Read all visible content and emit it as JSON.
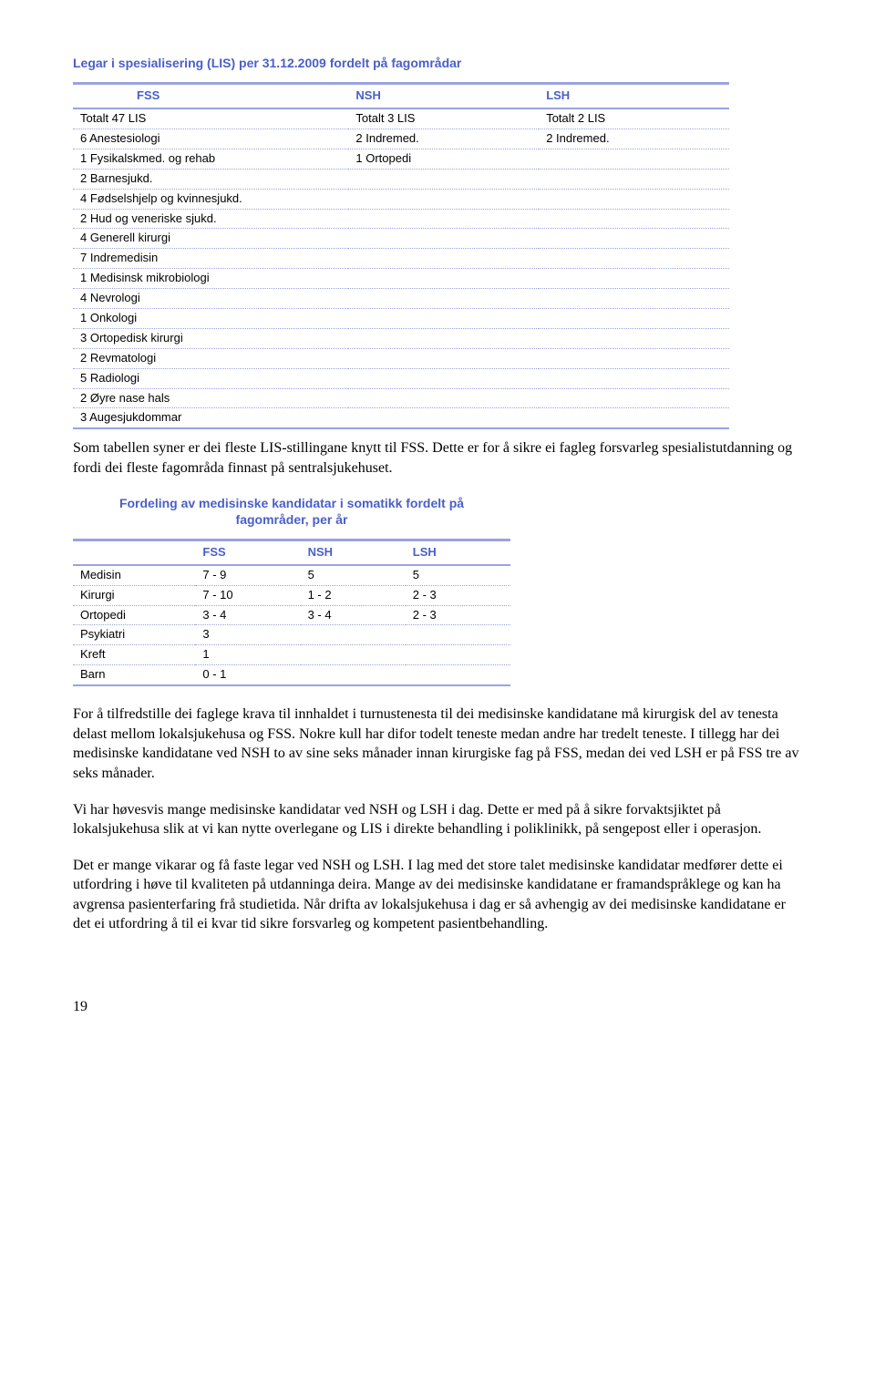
{
  "title1": "Legar i spesialisering (LIS) per 31.12.2009 fordelt på fagområdar",
  "t1": {
    "headers": [
      "FSS",
      "NSH",
      "LSH"
    ],
    "rows": [
      [
        "Totalt 47 LIS",
        "Totalt 3 LIS",
        "Totalt 2 LIS"
      ],
      [
        "6 Anestesiologi",
        "2 Indremed.",
        "2 Indremed."
      ],
      [
        "1 Fysikalskmed. og rehab",
        "1 Ortopedi",
        ""
      ],
      [
        "2 Barnesjukd.",
        "",
        ""
      ],
      [
        "4 Fødselshjelp og kvinnesjukd.",
        "",
        ""
      ],
      [
        "2 Hud og veneriske sjukd.",
        "",
        ""
      ],
      [
        "4 Generell kirurgi",
        "",
        ""
      ],
      [
        "7 Indremedisin",
        "",
        ""
      ],
      [
        "1 Medisinsk mikrobiologi",
        "",
        ""
      ],
      [
        "4 Nevrologi",
        "",
        ""
      ],
      [
        "1 Onkologi",
        "",
        ""
      ],
      [
        "3 Ortopedisk kirurgi",
        "",
        ""
      ],
      [
        "2 Revmatologi",
        "",
        ""
      ],
      [
        "5 Radiologi",
        "",
        ""
      ],
      [
        "2 Øyre nase hals",
        "",
        ""
      ],
      [
        "3 Augesjukdommar",
        "",
        ""
      ]
    ]
  },
  "para1": "Som tabellen syner er dei fleste LIS-stillingane knytt til FSS. Dette er for å sikre ei fagleg forsvarleg spesialistutdanning og fordi dei fleste fagområda finnast på sentralsjukehuset.",
  "title2a": "Fordeling av medisinske kandidatar i somatikk fordelt på",
  "title2b": "fagområder, per år",
  "t2": {
    "headers": [
      "",
      "FSS",
      "NSH",
      "LSH"
    ],
    "rows": [
      [
        "Medisin",
        "7 - 9",
        "5",
        "5"
      ],
      [
        "Kirurgi",
        "7 - 10",
        "1 - 2",
        "2 - 3"
      ],
      [
        "Ortopedi",
        "3 - 4",
        "3 - 4",
        "2 - 3"
      ],
      [
        "Psykiatri",
        "3",
        "",
        ""
      ],
      [
        "Kreft",
        "1",
        "",
        ""
      ],
      [
        "Barn",
        "0 - 1",
        "",
        ""
      ]
    ]
  },
  "para2": "For å tilfredstille dei faglege krava til innhaldet i turnustenesta til dei medisinske kandidatane må kirurgisk del av tenesta delast mellom lokalsjukehusa og FSS. Nokre kull har difor todelt teneste medan andre har tredelt teneste. I tillegg har dei medisinske kandidatane ved NSH  to av sine seks månader innan kirurgiske fag på FSS, medan dei ved LSH er på FSS tre av seks månader.",
  "para3": "Vi har høvesvis mange medisinske kandidatar ved NSH og LSH i dag. Dette er med på å sikre forvaktsjiktet på lokalsjukehusa slik at vi kan nytte overlegane og LIS i direkte behandling i poliklinikk, på sengepost eller i operasjon.",
  "para4": "Det er mange vikarar og få faste legar ved NSH og LSH. I lag med det store talet medisinske kandidatar medfører dette ei utfordring i høve til kvaliteten på utdanninga deira. Mange av dei medisinske kandidatane  er framandspråklege og kan ha avgrensa pasienterfaring frå studietida. Når drifta av lokalsjukehusa i dag er så avhengig av dei medisinske kandidatane er det ei utfordring å til ei kvar tid sikre forsvarleg og kompetent pasientbehandling.",
  "pagenum": "19"
}
